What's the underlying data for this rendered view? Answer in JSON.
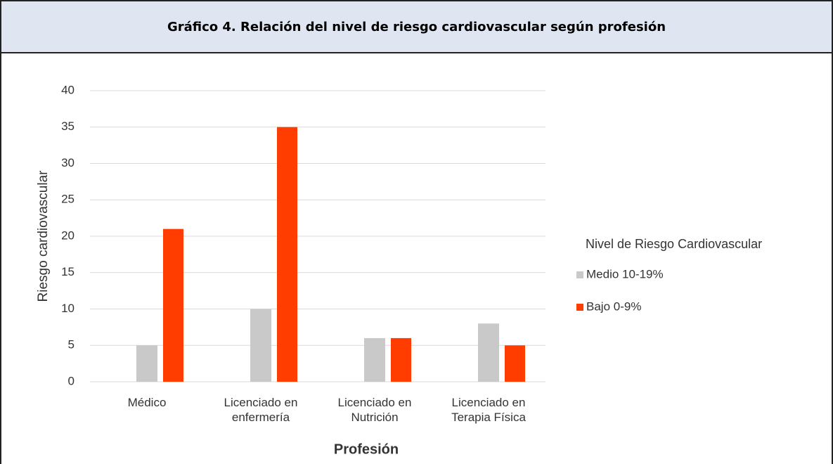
{
  "chart_data": {
    "type": "bar",
    "title": "Gráfico 4. Relación del nivel de riesgo cardiovascular según profesión",
    "categories": [
      "Médico",
      "Licenciado en enfermería",
      "Licenciado en Nutrición",
      "Licenciado en Terapia Física"
    ],
    "series": [
      {
        "name": "Medio 10-19%",
        "color": "#c9c9c9",
        "values": [
          5,
          10,
          6,
          8
        ]
      },
      {
        "name": "Bajo 0-9%",
        "color": "#ff3d00",
        "values": [
          21,
          35,
          6,
          5
        ]
      }
    ],
    "legend_title": "Nivel de Riesgo Cardiovascular",
    "legend_position": "right",
    "x_label": "Profesión",
    "y_label": "Riesgo cardiovascular",
    "ylim": [
      0,
      40
    ],
    "yticks": [
      0,
      5,
      10,
      15,
      20,
      25,
      30,
      35,
      40
    ],
    "grid": true
  }
}
